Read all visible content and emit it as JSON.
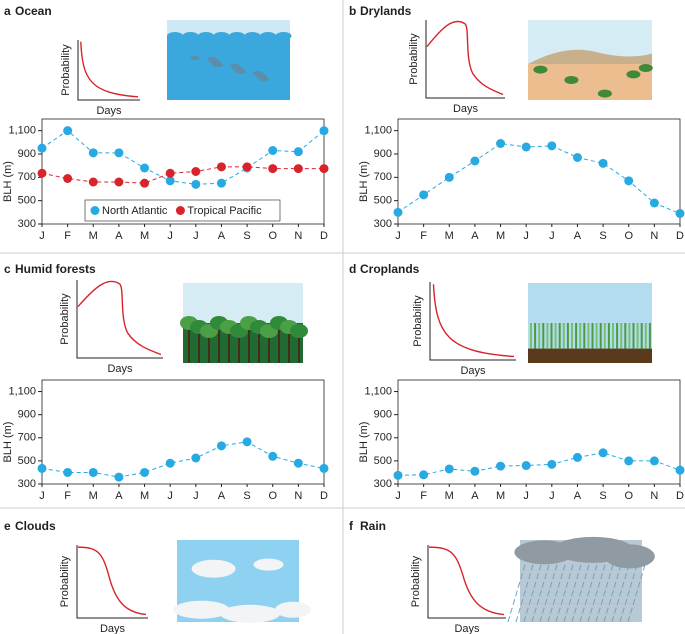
{
  "chart_data": [
    {
      "type": "line",
      "label": "a",
      "title": "Ocean",
      "inset": {
        "ylabel": "Probability",
        "xlabel": "Days"
      },
      "ylabel": "BLH (m)",
      "categories": [
        "J",
        "F",
        "M",
        "A",
        "M",
        "J",
        "J",
        "A",
        "S",
        "O",
        "N",
        "D"
      ],
      "series": [
        {
          "name": "North Atlantic",
          "color": "#27a9e1",
          "values": [
            950,
            1100,
            910,
            910,
            780,
            670,
            640,
            650,
            780,
            930,
            920,
            1100
          ]
        },
        {
          "name": "Tropical Pacific",
          "color": "#d9232b",
          "values": [
            735,
            690,
            660,
            660,
            650,
            735,
            750,
            790,
            790,
            775,
            775,
            775
          ]
        }
      ],
      "ylim": [
        300,
        1200
      ],
      "yticks": [
        300,
        500,
        700,
        900,
        {
          "value": 1100,
          "label": "1,100"
        }
      ],
      "legend": "bottom"
    },
    {
      "type": "line",
      "label": "b",
      "title": "Drylands",
      "inset": {
        "ylabel": "Probability",
        "xlabel": "Days"
      },
      "ylabel": "BLH (m)",
      "categories": [
        "J",
        "F",
        "M",
        "A",
        "M",
        "J",
        "J",
        "A",
        "S",
        "O",
        "N",
        "D"
      ],
      "series": [
        {
          "color": "#27a9e1",
          "values": [
            400,
            550,
            700,
            840,
            990,
            960,
            970,
            870,
            820,
            670,
            480,
            390
          ]
        }
      ],
      "ylim": [
        300,
        1200
      ],
      "yticks": [
        300,
        500,
        700,
        900,
        {
          "value": 1100,
          "label": "1,100"
        }
      ]
    },
    {
      "type": "line",
      "label": "c",
      "title": "Humid forests",
      "inset": {
        "ylabel": "Probability",
        "xlabel": "Days"
      },
      "ylabel": "BLH (m)",
      "categories": [
        "J",
        "F",
        "M",
        "A",
        "M",
        "J",
        "J",
        "A",
        "S",
        "O",
        "N",
        "D"
      ],
      "series": [
        {
          "color": "#27a9e1",
          "values": [
            435,
            400,
            400,
            360,
            400,
            480,
            525,
            630,
            665,
            540,
            480,
            435
          ]
        }
      ],
      "ylim": [
        300,
        1200
      ],
      "yticks": [
        300,
        500,
        700,
        900,
        {
          "value": 1100,
          "label": "1,100"
        }
      ]
    },
    {
      "type": "line",
      "label": "d",
      "title": "Croplands",
      "inset": {
        "ylabel": "Probability",
        "xlabel": "Days"
      },
      "ylabel": "BLH (m)",
      "categories": [
        "J",
        "F",
        "M",
        "A",
        "M",
        "J",
        "J",
        "A",
        "S",
        "O",
        "N",
        "D"
      ],
      "series": [
        {
          "color": "#27a9e1",
          "values": [
            375,
            380,
            430,
            410,
            455,
            460,
            470,
            530,
            570,
            500,
            500,
            420
          ]
        }
      ],
      "ylim": [
        300,
        1200
      ],
      "yticks": [
        300,
        500,
        700,
        900,
        {
          "value": 1100,
          "label": "1,100"
        }
      ]
    }
  ],
  "illustrations": [
    {
      "label": "e",
      "title": "Clouds",
      "inset": {
        "ylabel": "Probability",
        "xlabel": "Days"
      }
    },
    {
      "label": "f",
      "title": "Rain",
      "inset": {
        "ylabel": "Probability",
        "xlabel": "Days"
      }
    }
  ]
}
